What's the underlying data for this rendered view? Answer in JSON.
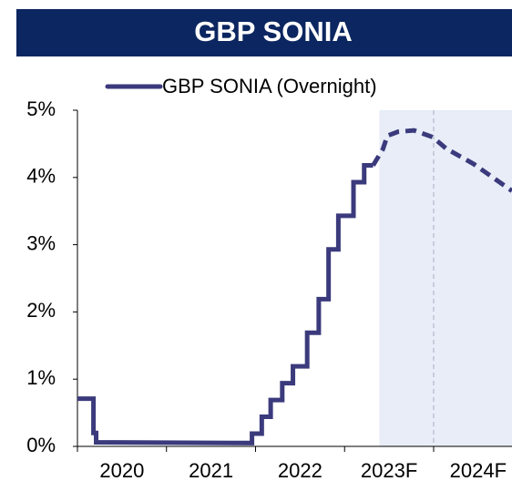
{
  "chart_data": {
    "type": "line",
    "title": "GBP SONIA",
    "title_background": "#0b2660",
    "series": [
      {
        "name": "GBP SONIA (Overnight)",
        "color": "#3b3a7c",
        "x": [
          2020,
          2020.18,
          2020.18,
          2020.21,
          2020.21,
          2021.96,
          2021.96,
          2022.07,
          2022.07,
          2022.17,
          2022.17,
          2022.3,
          2022.3,
          2022.42,
          2022.42,
          2022.58,
          2022.58,
          2022.71,
          2022.71,
          2022.82,
          2022.82,
          2022.93,
          2022.93,
          2023.1,
          2023.1,
          2023.22,
          2023.22,
          2023.32,
          2023.43,
          2023.48,
          2023.6,
          2023.78,
          2023.99,
          2024.14,
          2024.45,
          2024.88
        ],
        "values": [
          0.71,
          0.71,
          0.2,
          0.2,
          0.06,
          0.05,
          0.19,
          0.19,
          0.44,
          0.44,
          0.69,
          0.69,
          0.94,
          0.94,
          1.19,
          1.19,
          1.69,
          1.69,
          2.19,
          2.19,
          2.93,
          2.93,
          3.43,
          3.43,
          3.93,
          3.93,
          4.18,
          4.18,
          4.42,
          4.62,
          4.68,
          4.7,
          4.6,
          4.43,
          4.2,
          3.8
        ]
      }
    ],
    "dashed_from_x": 2023.32,
    "shaded_from_x": 2023.39,
    "shade_color": "#e8edf8",
    "vline_x": 2024,
    "xlim": [
      2020,
      2024.88
    ],
    "xticks": [
      {
        "value": 2020,
        "label": "2020"
      },
      {
        "value": 2021,
        "label": "2021"
      },
      {
        "value": 2022,
        "label": "2022"
      },
      {
        "value": 2023,
        "label": "2023F"
      },
      {
        "value": 2024,
        "label": "2024F"
      }
    ],
    "ylim": [
      0,
      5
    ],
    "yticks": [
      {
        "value": 0,
        "label": "0%"
      },
      {
        "value": 1,
        "label": "1%"
      },
      {
        "value": 2,
        "label": "2%"
      },
      {
        "value": 3,
        "label": "3%"
      },
      {
        "value": 4,
        "label": "4%"
      },
      {
        "value": 5,
        "label": "5%"
      }
    ],
    "legend": "top"
  }
}
